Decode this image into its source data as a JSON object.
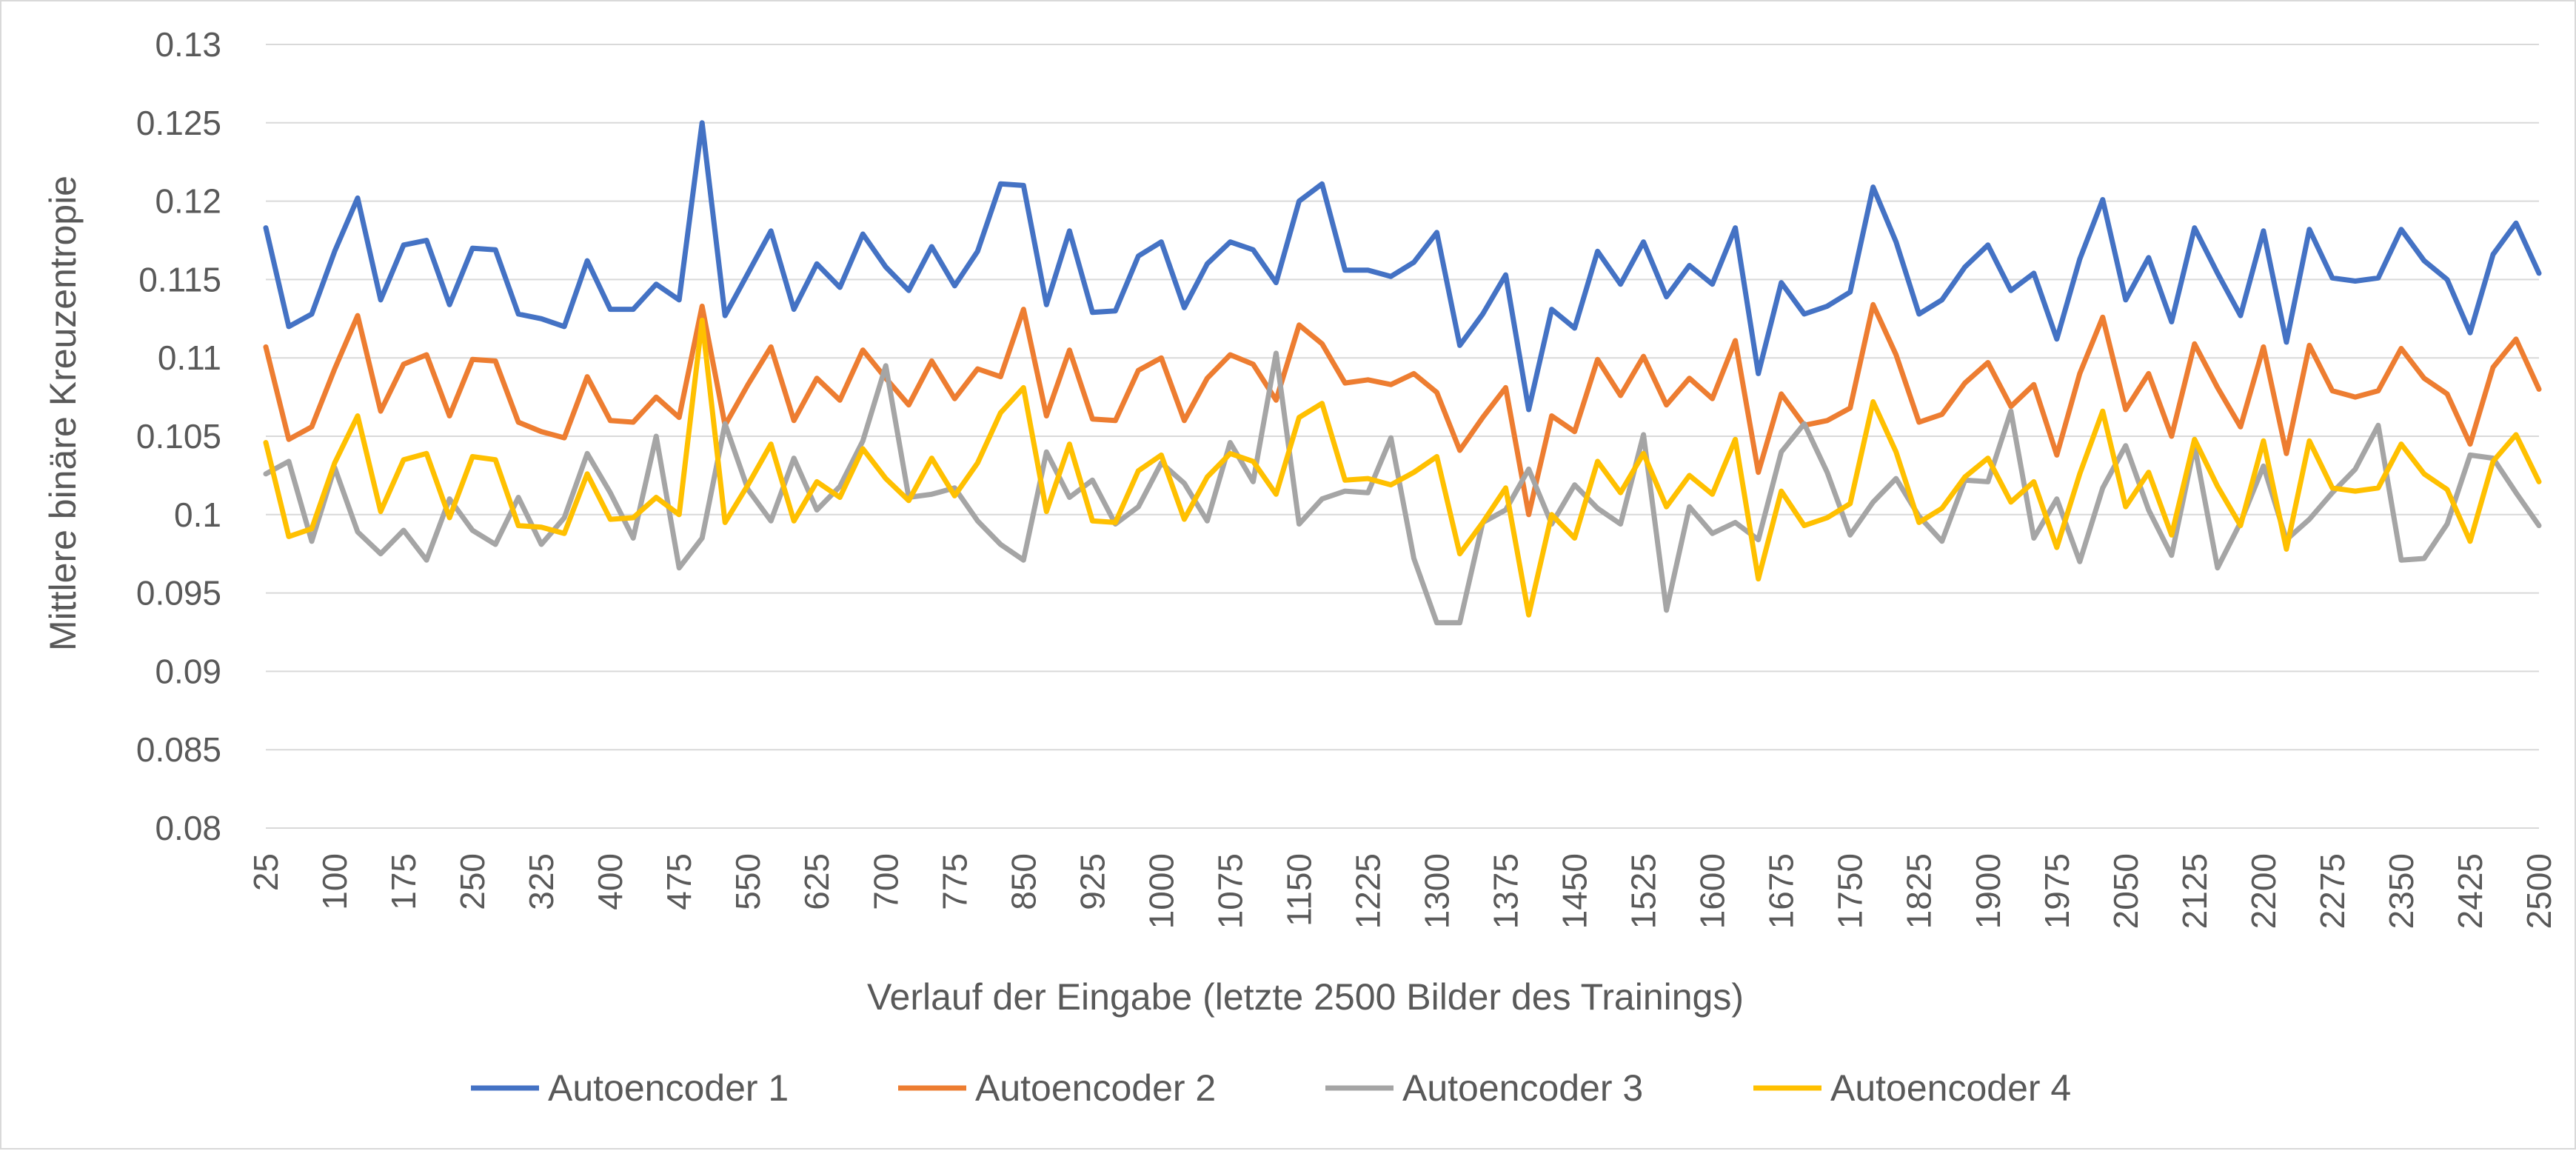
{
  "chart_data": {
    "type": "line",
    "xlabel": "Verlauf der Eingabe (letzte 2500 Bilder des Trainings)",
    "ylabel": "Mittlere binäre Kreuzentropie",
    "ylim": [
      0.08,
      0.13
    ],
    "y_ticks": [
      "0.08",
      "0.085",
      "0.09",
      "0.095",
      "0.1",
      "0.105",
      "0.11",
      "0.115",
      "0.12",
      "0.125",
      "0.13"
    ],
    "x_tick_labels": [
      "25",
      "100",
      "175",
      "250",
      "325",
      "400",
      "475",
      "550",
      "625",
      "700",
      "775",
      "850",
      "925",
      "1000",
      "1075",
      "1150",
      "1225",
      "1300",
      "1375",
      "1450",
      "1525",
      "1600",
      "1675",
      "1750",
      "1825",
      "1900",
      "1975",
      "2050",
      "2125",
      "2200",
      "2275",
      "2350",
      "2425",
      "2500"
    ],
    "x": [
      25,
      50,
      75,
      100,
      125,
      150,
      175,
      200,
      225,
      250,
      275,
      300,
      325,
      350,
      375,
      400,
      425,
      450,
      475,
      500,
      525,
      550,
      575,
      600,
      625,
      650,
      675,
      700,
      725,
      750,
      775,
      800,
      825,
      850,
      875,
      900,
      925,
      950,
      975,
      1000,
      1025,
      1050,
      1075,
      1100,
      1125,
      1150,
      1175,
      1200,
      1225,
      1250,
      1275,
      1300,
      1325,
      1350,
      1375,
      1400,
      1425,
      1450,
      1475,
      1500,
      1525,
      1550,
      1575,
      1600,
      1625,
      1650,
      1675,
      1700,
      1725,
      1750,
      1775,
      1800,
      1825,
      1850,
      1875,
      1900,
      1925,
      1950,
      1975,
      2000,
      2025,
      2050,
      2075,
      2100,
      2125,
      2150,
      2175,
      2200,
      2225,
      2250,
      2275,
      2300,
      2325,
      2350,
      2375,
      2400,
      2425,
      2450,
      2475,
      2500
    ],
    "grid": true,
    "legend_position": "bottom",
    "series": [
      {
        "name": "Autoencoder 1",
        "color": "#4472c4",
        "values": [
          0.1183,
          0.112,
          0.1128,
          0.1168,
          0.1202,
          0.1137,
          0.1172,
          0.1175,
          0.1134,
          0.117,
          0.1169,
          0.1128,
          0.1125,
          0.112,
          0.1162,
          0.1131,
          0.1131,
          0.1147,
          0.1137,
          0.125,
          0.1127,
          0.1154,
          0.1181,
          0.1131,
          0.116,
          0.1145,
          0.1179,
          0.1158,
          0.1143,
          0.1171,
          0.1146,
          0.1168,
          0.1211,
          0.121,
          0.1134,
          0.1181,
          0.1129,
          0.113,
          0.1165,
          0.1174,
          0.1132,
          0.116,
          0.1174,
          0.1169,
          0.1148,
          0.12,
          0.1211,
          0.1156,
          0.1156,
          0.1152,
          0.1161,
          0.118,
          0.1108,
          0.1128,
          0.1153,
          0.1067,
          0.1131,
          0.1119,
          0.1168,
          0.1147,
          0.1174,
          0.1139,
          0.1159,
          0.1147,
          0.1183,
          0.109,
          0.1148,
          0.1128,
          0.1133,
          0.1142,
          0.1209,
          0.1174,
          0.1128,
          0.1137,
          0.1158,
          0.1172,
          0.1143,
          0.1154,
          0.1112,
          0.1163,
          0.1201,
          0.1137,
          0.1164,
          0.1123,
          0.1183,
          0.1154,
          0.1127,
          0.1181,
          0.111,
          0.1182,
          0.1151,
          0.1149,
          0.1151,
          0.1182,
          0.1162,
          0.115,
          0.1116,
          0.1166,
          0.1186,
          0.1154
        ]
      },
      {
        "name": "Autoencoder 2",
        "color": "#ed7d31",
        "values": [
          0.1107,
          0.1048,
          0.1056,
          0.1093,
          0.1127,
          0.1066,
          0.1096,
          0.1102,
          0.1063,
          0.1099,
          0.1098,
          0.1059,
          0.1053,
          0.1049,
          0.1088,
          0.106,
          0.1059,
          0.1075,
          0.1062,
          0.1133,
          0.1057,
          0.1083,
          0.1107,
          0.106,
          0.1087,
          0.1073,
          0.1105,
          0.1087,
          0.107,
          0.1098,
          0.1074,
          0.1093,
          0.1088,
          0.1131,
          0.1063,
          0.1105,
          0.1061,
          0.106,
          0.1092,
          0.11,
          0.106,
          0.1087,
          0.1102,
          0.1096,
          0.1073,
          0.1121,
          0.1109,
          0.1084,
          0.1086,
          0.1083,
          0.109,
          0.1078,
          0.1041,
          0.1062,
          0.1081,
          0.1,
          0.1063,
          0.1053,
          0.1099,
          0.1076,
          0.1101,
          0.107,
          0.1087,
          0.1074,
          0.1111,
          0.1027,
          0.1077,
          0.1057,
          0.106,
          0.1068,
          0.1134,
          0.1102,
          0.1059,
          0.1064,
          0.1084,
          0.1097,
          0.1069,
          0.1083,
          0.1038,
          0.109,
          0.1126,
          0.1067,
          0.109,
          0.105,
          0.1109,
          0.1081,
          0.1056,
          0.1107,
          0.1039,
          0.1108,
          0.1079,
          0.1075,
          0.1079,
          0.1106,
          0.1087,
          0.1077,
          0.1045,
          0.1094,
          0.1112,
          0.108
        ]
      },
      {
        "name": "Autoencoder 3",
        "color": "#a5a5a5",
        "values": [
          0.1026,
          0.1034,
          0.0983,
          0.103,
          0.0989,
          0.0975,
          0.099,
          0.0971,
          0.101,
          0.099,
          0.0981,
          0.1011,
          0.0981,
          0.0998,
          0.1039,
          0.1014,
          0.0985,
          0.105,
          0.0966,
          0.0985,
          0.1058,
          0.1016,
          0.0996,
          0.1036,
          0.1003,
          0.1018,
          0.1047,
          0.1095,
          0.1011,
          0.1013,
          0.1017,
          0.0996,
          0.0981,
          0.0971,
          0.104,
          0.1011,
          0.1022,
          0.0994,
          0.1005,
          0.1033,
          0.102,
          0.0996,
          0.1046,
          0.1021,
          0.1103,
          0.0994,
          0.101,
          0.1015,
          0.1014,
          0.1049,
          0.0972,
          0.0931,
          0.0931,
          0.0995,
          0.1003,
          0.1029,
          0.0994,
          0.1019,
          0.1004,
          0.0994,
          0.1051,
          0.0939,
          0.1005,
          0.0988,
          0.0995,
          0.0984,
          0.104,
          0.1058,
          0.1027,
          0.0987,
          0.1008,
          0.1023,
          0.0999,
          0.0983,
          0.1022,
          0.1021,
          0.1066,
          0.0985,
          0.101,
          0.097,
          0.1017,
          0.1044,
          0.1003,
          0.0974,
          0.1044,
          0.0966,
          0.0995,
          0.1031,
          0.0984,
          0.0997,
          0.1014,
          0.1029,
          0.1057,
          0.0971,
          0.0972,
          0.0994,
          0.1038,
          0.1036,
          0.1014,
          0.0993
        ]
      },
      {
        "name": "Autoencoder 4",
        "color": "#ffc000",
        "values": [
          0.1046,
          0.0986,
          0.0991,
          0.1033,
          0.1063,
          0.1002,
          0.1035,
          0.1039,
          0.0998,
          0.1037,
          0.1035,
          0.0993,
          0.0992,
          0.0988,
          0.1026,
          0.0997,
          0.0998,
          0.1011,
          0.1,
          0.1124,
          0.0995,
          0.1019,
          0.1045,
          0.0996,
          0.1021,
          0.1011,
          0.1042,
          0.1023,
          0.1009,
          0.1036,
          0.1012,
          0.1033,
          0.1065,
          0.1081,
          0.1002,
          0.1045,
          0.0996,
          0.0995,
          0.1028,
          0.1038,
          0.0997,
          0.1024,
          0.1039,
          0.1034,
          0.1013,
          0.1062,
          0.1071,
          0.1022,
          0.1023,
          0.1019,
          0.1027,
          0.1037,
          0.0975,
          0.0995,
          0.1017,
          0.0936,
          0.1,
          0.0985,
          0.1034,
          0.1014,
          0.1039,
          0.1005,
          0.1025,
          0.1013,
          0.1048,
          0.0959,
          0.1015,
          0.0993,
          0.0998,
          0.1007,
          0.1072,
          0.104,
          0.0995,
          0.1004,
          0.1024,
          0.1036,
          0.1008,
          0.1021,
          0.0979,
          0.1026,
          0.1066,
          0.1005,
          0.1027,
          0.0987,
          0.1048,
          0.1018,
          0.0993,
          0.1047,
          0.0978,
          0.1047,
          0.1017,
          0.1015,
          0.1017,
          0.1045,
          0.1026,
          0.1016,
          0.0983,
          0.1034,
          0.1051,
          0.1021
        ]
      }
    ]
  }
}
